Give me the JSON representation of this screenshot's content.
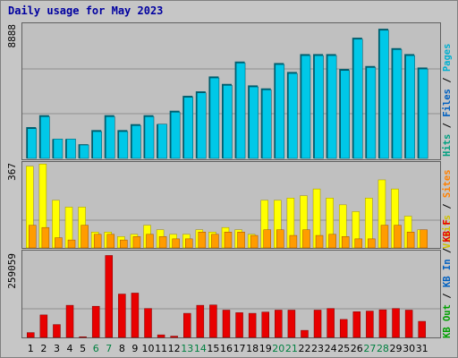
{
  "title": "Daily usage for May 2023",
  "colors": {
    "hits": "#00c8e8",
    "files": "#0068ff",
    "pages": "#00a8d8",
    "visits": "#ffff00",
    "sites": "#ff9c00",
    "kb_in": "#0050d0",
    "kb_out": "#008040",
    "kb_f": "#e80000",
    "weekend_label": "#008040",
    "weekday_label": "#000000"
  },
  "legend_top": [
    {
      "text": "Hits",
      "color": "#00a080"
    },
    {
      "text": "Files",
      "color": "#0060c0"
    },
    {
      "text": "Pages",
      "color": "#00b0d0"
    }
  ],
  "legend_mid": [
    {
      "text": "Visits",
      "color": "#d0c000"
    },
    {
      "text": "Sites",
      "color": "#ff8000"
    }
  ],
  "legend_bot": [
    {
      "text": "KB Out",
      "color": "#00a000"
    },
    {
      "text": "KB In",
      "color": "#0060c0"
    },
    {
      "text": "KB F",
      "color": "#e80000"
    }
  ],
  "chart_data": [
    {
      "type": "bar",
      "ymax_label": "8888",
      "ylim": [
        0,
        8888
      ],
      "categories": [
        "1",
        "2",
        "3",
        "4",
        "5",
        "6",
        "7",
        "8",
        "9",
        "10",
        "11",
        "12",
        "13",
        "14",
        "15",
        "16",
        "17",
        "18",
        "19",
        "20",
        "21",
        "22",
        "23",
        "24",
        "25",
        "26",
        "27",
        "28",
        "29",
        "30",
        "31"
      ],
      "series": [
        {
          "name": "Hits",
          "values": [
            2100,
            2900,
            1300,
            1300,
            950,
            1900,
            2900,
            1900,
            2300,
            2900,
            2300,
            3200,
            4200,
            4500,
            5500,
            5000,
            6500,
            4900,
            4700,
            6400,
            5800,
            7000,
            7000,
            7000,
            6000,
            8100,
            6200,
            8700,
            7400,
            7000,
            6100
          ]
        },
        {
          "name": "Files",
          "values": [
            2000,
            2800,
            1300,
            1300,
            900,
            1800,
            2800,
            1800,
            2200,
            2800,
            2300,
            3100,
            4100,
            4400,
            5400,
            4900,
            6400,
            4800,
            4600,
            6300,
            5700,
            6900,
            6900,
            6900,
            5900,
            8000,
            6100,
            8600,
            7300,
            6900,
            6000
          ]
        }
      ]
    },
    {
      "type": "bar",
      "ymax_label": "367",
      "ylim": [
        0,
        367
      ],
      "categories": [
        "1",
        "2",
        "3",
        "4",
        "5",
        "6",
        "7",
        "8",
        "9",
        "10",
        "11",
        "12",
        "13",
        "14",
        "15",
        "16",
        "17",
        "18",
        "19",
        "20",
        "21",
        "22",
        "23",
        "24",
        "25",
        "26",
        "27",
        "28",
        "29",
        "30",
        "31"
      ],
      "series": [
        {
          "name": "Visits",
          "values": [
            360,
            370,
            210,
            180,
            180,
            70,
            70,
            50,
            60,
            100,
            80,
            60,
            60,
            80,
            70,
            90,
            80,
            60,
            210,
            210,
            220,
            230,
            260,
            220,
            190,
            160,
            220,
            300,
            260,
            140,
            80
          ]
        },
        {
          "name": "Sites",
          "values": [
            100,
            90,
            45,
            35,
            100,
            60,
            60,
            35,
            50,
            60,
            50,
            40,
            40,
            70,
            60,
            70,
            70,
            55,
            80,
            80,
            55,
            80,
            55,
            60,
            50,
            40,
            40,
            100,
            100,
            70,
            80
          ]
        }
      ]
    },
    {
      "type": "bar",
      "ymax_label": "259059",
      "ylim": [
        0,
        259059
      ],
      "categories": [
        "1",
        "2",
        "3",
        "4",
        "5",
        "6",
        "7",
        "8",
        "9",
        "10",
        "11",
        "12",
        "13",
        "14",
        "15",
        "16",
        "17",
        "18",
        "19",
        "20",
        "21",
        "22",
        "23",
        "24",
        "25",
        "26",
        "27",
        "28",
        "29",
        "30",
        "31"
      ],
      "series": [
        {
          "name": "KB F",
          "values": [
            15000,
            70000,
            40000,
            100000,
            2000,
            97000,
            255000,
            135000,
            138000,
            90000,
            8000,
            4000,
            75000,
            100000,
            101000,
            85000,
            77000,
            75000,
            79000,
            85000,
            85000,
            22000,
            85000,
            90000,
            56000,
            80000,
            82000,
            86000,
            90000,
            85000,
            50000
          ]
        }
      ]
    }
  ]
}
